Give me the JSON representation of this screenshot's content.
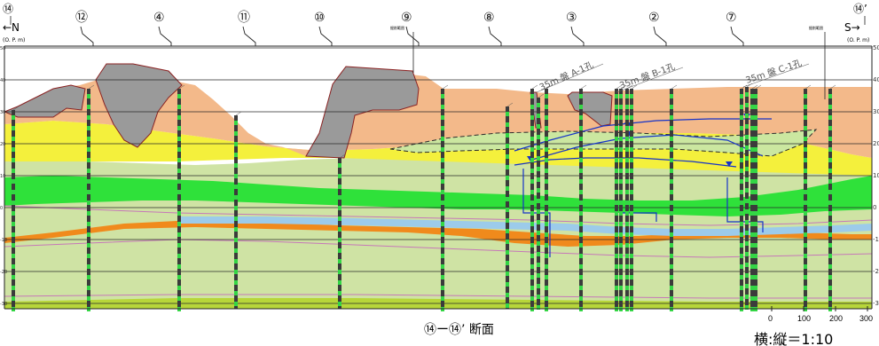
{
  "section_title": "⑭ー⑭’ 断面",
  "scale_ratio": "横:縦＝1:10",
  "direction_left": "←N",
  "direction_right": "S→",
  "elev_unit_left": "(O. P. m)",
  "elev_unit_right": "(O. P. m)",
  "left_end_label": "⑭",
  "right_end_label": "⑭’",
  "section_marks": [
    "⑫",
    "④",
    "⑪",
    "⑩",
    "⑨",
    "⑧",
    "③",
    "②",
    "⑦"
  ],
  "elevation_ticks": [
    "50",
    "40",
    "30",
    "20",
    "10",
    "0",
    "-10",
    "-20",
    "-30"
  ],
  "scale_bar_ticks": [
    "0",
    "100",
    "200",
    "300"
  ],
  "well_labels": [
    "35m 盤 A-1孔",
    "35m 盤 B-1孔",
    "35m 盤 C-1孔"
  ],
  "mark_notes": [
    "掘削範囲",
    "掘削範囲"
  ],
  "colors": {
    "fill_top": "#f3b98a",
    "sand_yellow": "#f4f03c",
    "clay_light": "#cfe3a4",
    "aquifer_green": "#2fe13a",
    "gravel_orange": "#f08a1c",
    "cut_gray": "#9a9a9a",
    "water_blue": "#1633c8",
    "borehole": "#3b3b3b"
  }
}
